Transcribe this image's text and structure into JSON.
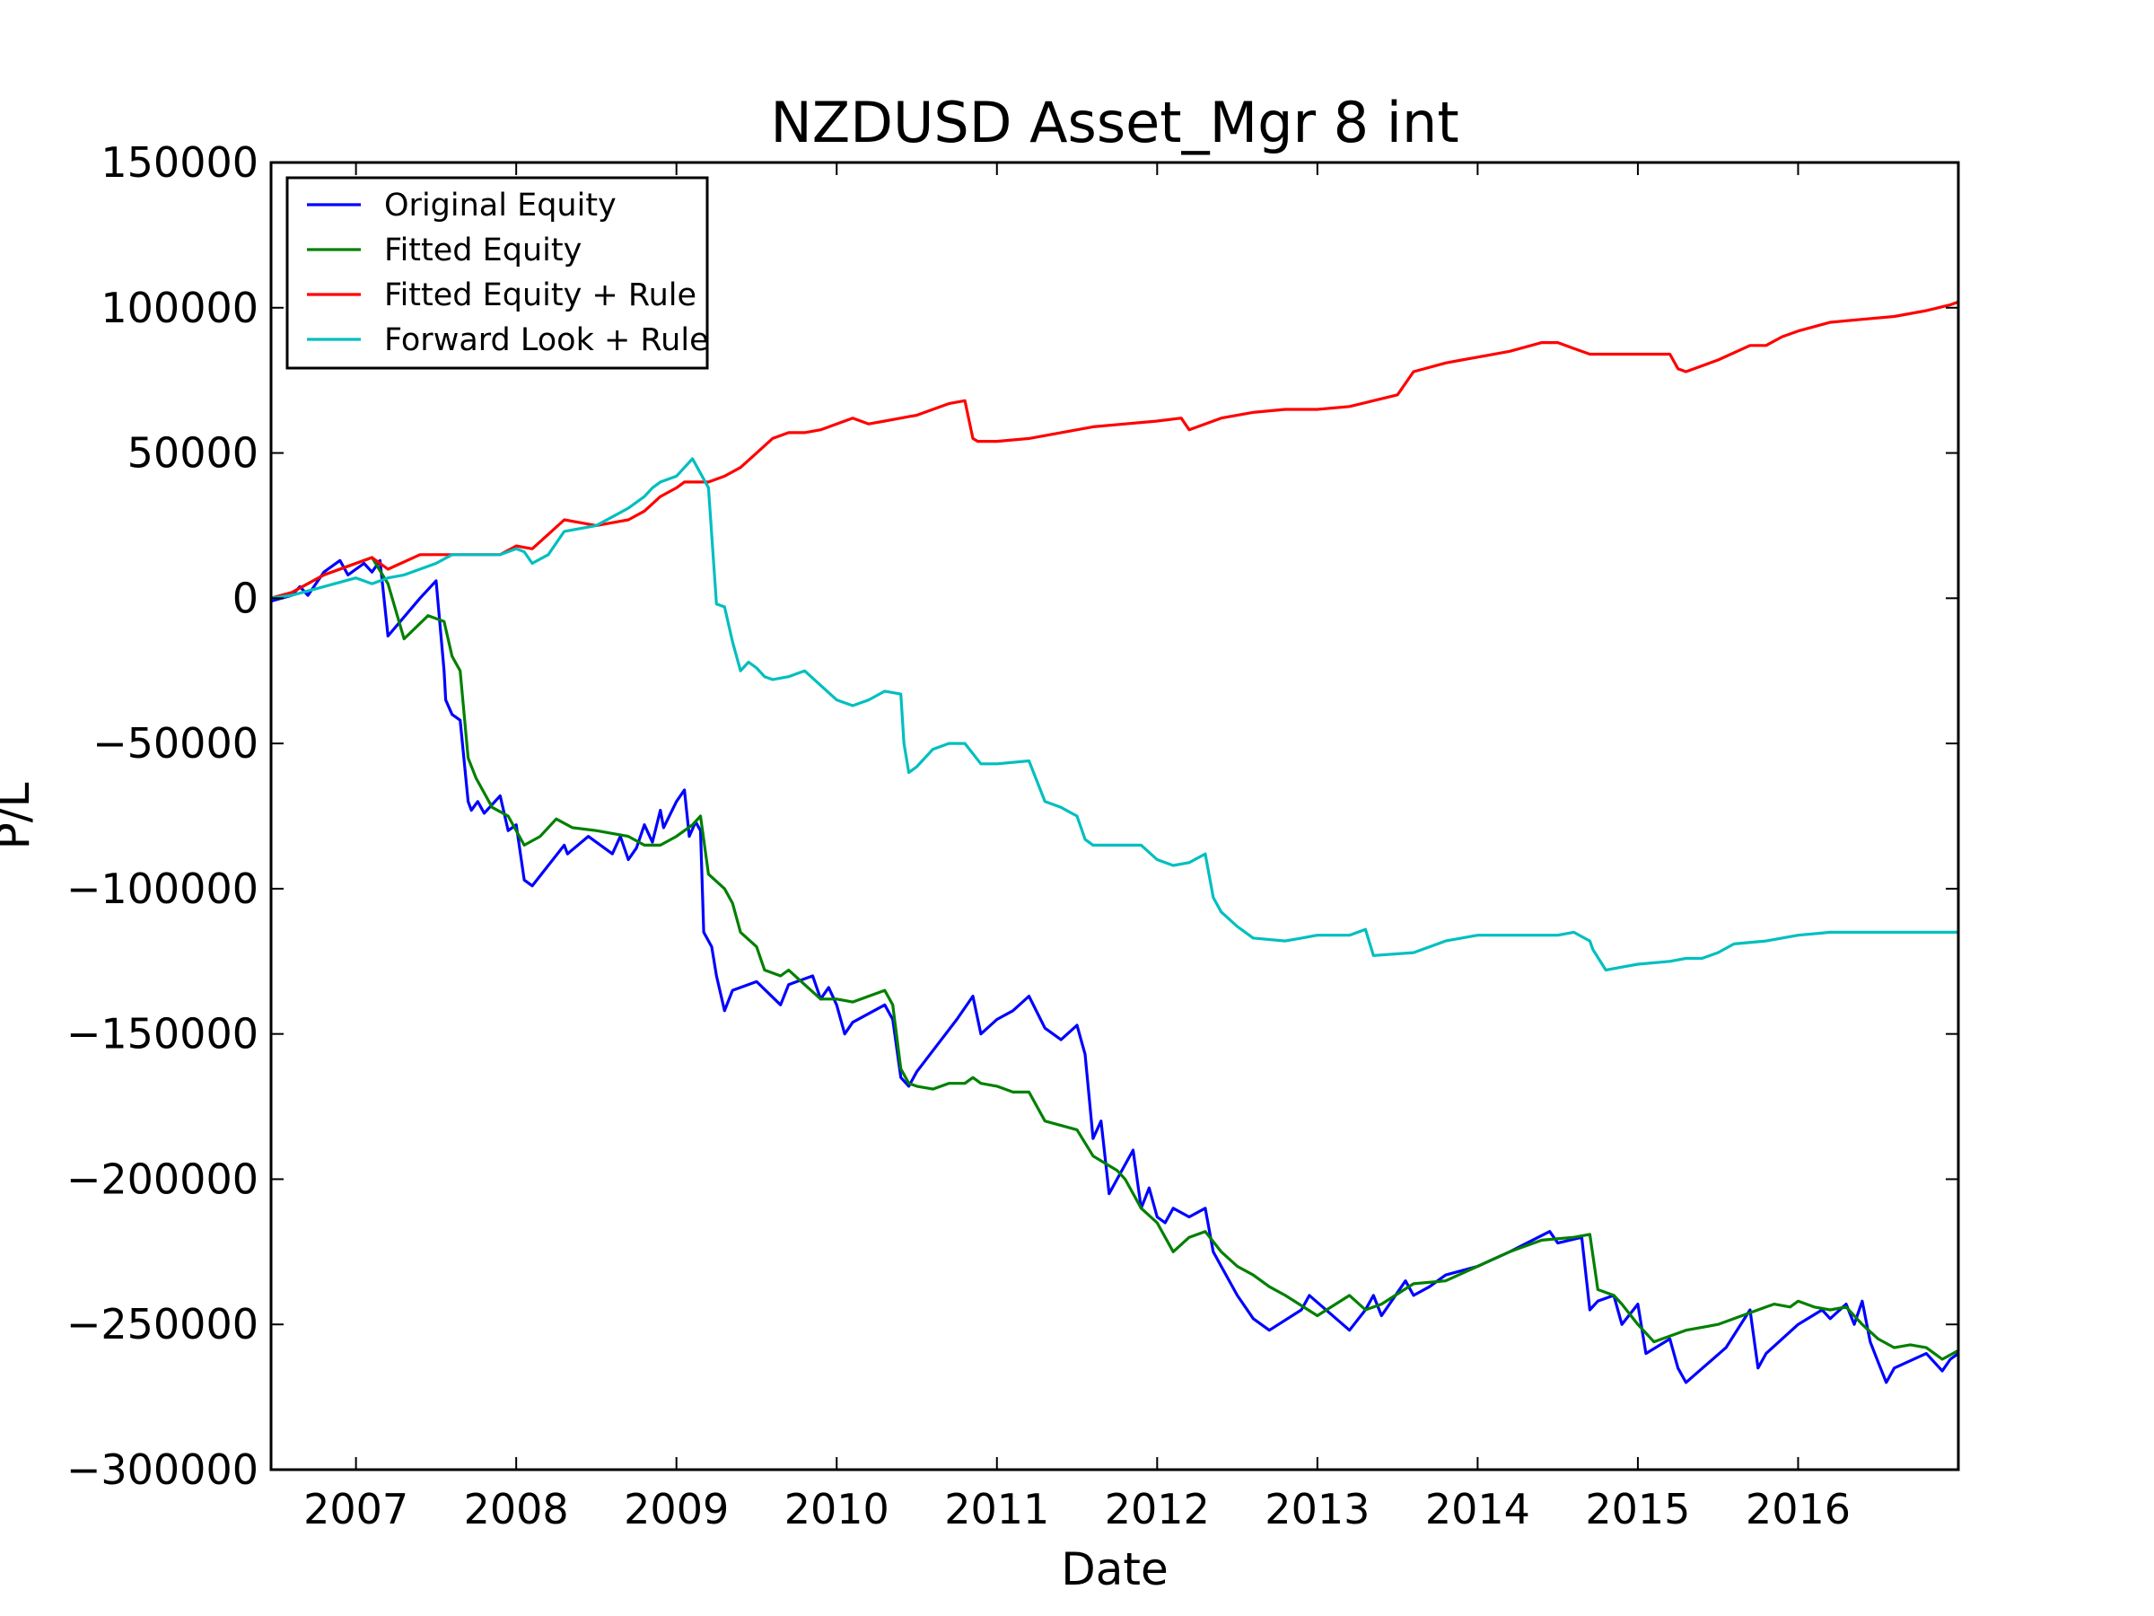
{
  "chart_data": {
    "type": "line",
    "title": "NZDUSD Asset_Mgr 8 int",
    "xlabel": "Date",
    "ylabel": "P/L",
    "xlim": [
      2006.47,
      2017.0
    ],
    "ylim": [
      -300000,
      150000
    ],
    "x_ticks": [
      2007,
      2008,
      2009,
      2010,
      2011,
      2012,
      2013,
      2014,
      2015,
      2016
    ],
    "x_tick_labels": [
      "2007",
      "2008",
      "2009",
      "2010",
      "2011",
      "2012",
      "2013",
      "2014",
      "2015",
      "2016"
    ],
    "y_ticks": [
      150000,
      100000,
      50000,
      0,
      -50000,
      -100000,
      -150000,
      -200000,
      -250000,
      -300000
    ],
    "y_tick_labels": [
      "150000",
      "100000",
      "50000",
      "0",
      "−50000",
      "−100000",
      "−150000",
      "−200000",
      "−250000",
      "−300000"
    ],
    "grid": false,
    "legend": "top-left",
    "series": [
      {
        "name": "Original Equity",
        "color": "#0000ff",
        "x": [
          2006.47,
          2006.6,
          2006.65,
          2006.7,
          2006.8,
          2006.9,
          2006.95,
          2007.0,
          2007.05,
          2007.1,
          2007.15,
          2007.2,
          2007.4,
          2007.5,
          2007.55,
          2007.56,
          2007.6,
          2007.65,
          2007.7,
          2007.72,
          2007.76,
          2007.8,
          2007.9,
          2007.95,
          2008.0,
          2008.05,
          2008.1,
          2008.2,
          2008.3,
          2008.32,
          2008.45,
          2008.6,
          2008.65,
          2008.7,
          2008.75,
          2008.8,
          2008.85,
          2008.9,
          2008.92,
          2009.0,
          2009.05,
          2009.08,
          2009.12,
          2009.15,
          2009.17,
          2009.22,
          2009.25,
          2009.3,
          2009.35,
          2009.5,
          2009.65,
          2009.7,
          2009.85,
          2009.9,
          2009.95,
          2010.0,
          2010.05,
          2010.1,
          2010.3,
          2010.35,
          2010.4,
          2010.45,
          2010.5,
          2010.75,
          2010.85,
          2010.9,
          2011.0,
          2011.1,
          2011.2,
          2011.3,
          2011.4,
          2011.5,
          2011.55,
          2011.6,
          2011.65,
          2011.7,
          2011.75,
          2011.85,
          2011.9,
          2011.95,
          2012.0,
          2012.05,
          2012.1,
          2012.2,
          2012.3,
          2012.35,
          2012.4,
          2012.5,
          2012.6,
          2012.7,
          2012.9,
          2012.95,
          2013.2,
          2013.3,
          2013.35,
          2013.4,
          2013.55,
          2013.6,
          2013.7,
          2013.8,
          2014.0,
          2014.2,
          2014.45,
          2014.5,
          2014.65,
          2014.7,
          2014.75,
          2014.85,
          2014.9,
          2015.0,
          2015.05,
          2015.2,
          2015.25,
          2015.3,
          2015.55,
          2015.7,
          2015.75,
          2015.8,
          2016.0,
          2016.15,
          2016.2,
          2016.3,
          2016.35,
          2016.4,
          2016.45,
          2016.5,
          2016.55,
          2016.6,
          2016.8,
          2016.9,
          2016.95,
          2017.0
        ],
        "y": [
          -1000,
          1000,
          4000,
          1000,
          9000,
          13000,
          8000,
          10000,
          12000,
          9000,
          13000,
          -13000,
          0,
          6000,
          -25000,
          -35000,
          -40000,
          -42000,
          -70000,
          -73000,
          -70000,
          -74000,
          -68000,
          -80000,
          -78000,
          -97000,
          -99000,
          -92000,
          -85000,
          -88000,
          -82000,
          -88000,
          -82000,
          -90000,
          -86000,
          -78000,
          -84000,
          -73000,
          -79000,
          -70000,
          -66000,
          -82000,
          -77000,
          -80000,
          -115000,
          -120000,
          -130000,
          -142000,
          -135000,
          -132000,
          -140000,
          -133000,
          -130000,
          -138000,
          -134000,
          -140000,
          -150000,
          -146000,
          -140000,
          -145000,
          -165000,
          -168000,
          -163000,
          -145000,
          -137000,
          -150000,
          -145000,
          -142000,
          -137000,
          -148000,
          -152000,
          -147000,
          -157000,
          -186000,
          -180000,
          -205000,
          -200000,
          -190000,
          -210000,
          -203000,
          -213000,
          -215000,
          -210000,
          -213000,
          -210000,
          -225000,
          -230000,
          -240000,
          -248000,
          -252000,
          -245000,
          -240000,
          -252000,
          -245000,
          -240000,
          -247000,
          -235000,
          -240000,
          -237000,
          -233000,
          -230000,
          -225000,
          -218000,
          -222000,
          -220000,
          -245000,
          -242000,
          -240000,
          -250000,
          -243000,
          -260000,
          -255000,
          -265000,
          -270000,
          -258000,
          -245000,
          -265000,
          -260000,
          -250000,
          -245000,
          -248000,
          -243000,
          -250000,
          -242000,
          -256000,
          -263000,
          -270000,
          -265000,
          -260000,
          -266000,
          -262000,
          -260000
        ]
      },
      {
        "name": "Fitted Equity",
        "color": "#008000",
        "x": [
          2006.47,
          2006.6,
          2006.8,
          2007.0,
          2007.1,
          2007.2,
          2007.3,
          2007.45,
          2007.55,
          2007.6,
          2007.65,
          2007.7,
          2007.75,
          2007.85,
          2007.95,
          2008.05,
          2008.15,
          2008.25,
          2008.35,
          2008.5,
          2008.7,
          2008.8,
          2008.9,
          2009.0,
          2009.1,
          2009.15,
          2009.2,
          2009.3,
          2009.35,
          2009.4,
          2009.5,
          2009.55,
          2009.65,
          2009.7,
          2009.8,
          2009.9,
          2010.0,
          2010.1,
          2010.2,
          2010.3,
          2010.35,
          2010.4,
          2010.45,
          2010.5,
          2010.6,
          2010.7,
          2010.8,
          2010.85,
          2010.9,
          2011.0,
          2011.1,
          2011.2,
          2011.3,
          2011.5,
          2011.6,
          2011.75,
          2011.8,
          2011.9,
          2012.0,
          2012.1,
          2012.2,
          2012.3,
          2012.4,
          2012.5,
          2012.6,
          2012.7,
          2012.8,
          2013.0,
          2013.2,
          2013.3,
          2013.4,
          2013.6,
          2013.8,
          2014.0,
          2014.2,
          2014.4,
          2014.6,
          2014.7,
          2014.75,
          2014.85,
          2014.9,
          2015.0,
          2015.1,
          2015.3,
          2015.5,
          2015.7,
          2015.8,
          2015.85,
          2015.95,
          2016.0,
          2016.1,
          2016.2,
          2016.3,
          2016.4,
          2016.5,
          2016.6,
          2016.7,
          2016.8,
          2016.9,
          2017.0
        ],
        "y": [
          0,
          2000,
          8000,
          12000,
          14000,
          5000,
          -14000,
          -6000,
          -8000,
          -20000,
          -25000,
          -55000,
          -62000,
          -72000,
          -75000,
          -85000,
          -82000,
          -76000,
          -79000,
          -80000,
          -82000,
          -85000,
          -85000,
          -82000,
          -78000,
          -75000,
          -95000,
          -100000,
          -105000,
          -115000,
          -120000,
          -128000,
          -130000,
          -128000,
          -133000,
          -138000,
          -138000,
          -139000,
          -137000,
          -135000,
          -140000,
          -162000,
          -167000,
          -168000,
          -169000,
          -167000,
          -167000,
          -165000,
          -167000,
          -168000,
          -170000,
          -170000,
          -180000,
          -183000,
          -192000,
          -197000,
          -200000,
          -210000,
          -215000,
          -225000,
          -220000,
          -218000,
          -225000,
          -230000,
          -233000,
          -237000,
          -240000,
          -247000,
          -240000,
          -245000,
          -243000,
          -236000,
          -235000,
          -230000,
          -225000,
          -221000,
          -220000,
          -219000,
          -238000,
          -240000,
          -243000,
          -250000,
          -256000,
          -252000,
          -250000,
          -246000,
          -244000,
          -243000,
          -244000,
          -242000,
          -244000,
          -245000,
          -244000,
          -250000,
          -255000,
          -258000,
          -257000,
          -258000,
          -262000,
          -259000
        ]
      },
      {
        "name": "Fitted Equity + Rule",
        "color": "#ff0000",
        "x": [
          2006.47,
          2006.6,
          2006.8,
          2007.0,
          2007.1,
          2007.2,
          2007.4,
          2007.5,
          2007.6,
          2007.8,
          2007.9,
          2008.0,
          2008.1,
          2008.2,
          2008.3,
          2008.4,
          2008.5,
          2008.6,
          2008.7,
          2008.8,
          2008.9,
          2009.0,
          2009.05,
          2009.1,
          2009.2,
          2009.3,
          2009.4,
          2009.5,
          2009.6,
          2009.7,
          2009.8,
          2009.9,
          2010.0,
          2010.1,
          2010.2,
          2010.3,
          2010.4,
          2010.5,
          2010.6,
          2010.7,
          2010.8,
          2010.85,
          2010.88,
          2011.0,
          2011.2,
          2011.4,
          2011.6,
          2011.8,
          2012.0,
          2012.15,
          2012.2,
          2012.4,
          2012.6,
          2012.8,
          2013.0,
          2013.2,
          2013.35,
          2013.5,
          2013.6,
          2013.8,
          2013.9,
          2014.0,
          2014.2,
          2014.4,
          2014.5,
          2014.6,
          2014.7,
          2014.8,
          2015.0,
          2015.2,
          2015.25,
          2015.3,
          2015.5,
          2015.7,
          2015.8,
          2015.9,
          2016.0,
          2016.2,
          2016.4,
          2016.6,
          2016.8,
          2016.95,
          2017.0
        ],
        "y": [
          0,
          2000,
          8000,
          12000,
          14000,
          10000,
          15000,
          15000,
          15000,
          15000,
          15000,
          18000,
          17000,
          22000,
          27000,
          26000,
          25000,
          26000,
          27000,
          30000,
          35000,
          38000,
          40000,
          40000,
          40000,
          42000,
          45000,
          50000,
          55000,
          57000,
          57000,
          58000,
          60000,
          62000,
          60000,
          61000,
          62000,
          63000,
          65000,
          67000,
          68000,
          55000,
          54000,
          54000,
          55000,
          57000,
          59000,
          60000,
          61000,
          62000,
          58000,
          62000,
          64000,
          65000,
          65000,
          66000,
          68000,
          70000,
          78000,
          81000,
          82000,
          83000,
          85000,
          88000,
          88000,
          86000,
          84000,
          84000,
          84000,
          84000,
          79000,
          78000,
          82000,
          87000,
          87000,
          90000,
          92000,
          95000,
          96000,
          97000,
          99000,
          101000,
          102000
        ]
      },
      {
        "name": "Forward Look + Rule",
        "color": "#00bfbf",
        "x": [
          2006.47,
          2006.6,
          2006.8,
          2007.0,
          2007.1,
          2007.2,
          2007.3,
          2007.5,
          2007.6,
          2007.8,
          2007.9,
          2008.0,
          2008.05,
          2008.1,
          2008.2,
          2008.3,
          2008.4,
          2008.5,
          2008.6,
          2008.7,
          2008.8,
          2008.85,
          2008.9,
          2009.0,
          2009.05,
          2009.1,
          2009.15,
          2009.2,
          2009.25,
          2009.3,
          2009.35,
          2009.4,
          2009.45,
          2009.5,
          2009.55,
          2009.6,
          2009.7,
          2009.8,
          2009.9,
          2010.0,
          2010.1,
          2010.2,
          2010.3,
          2010.4,
          2010.42,
          2010.45,
          2010.5,
          2010.6,
          2010.7,
          2010.8,
          2010.9,
          2011.0,
          2011.2,
          2011.3,
          2011.4,
          2011.5,
          2011.55,
          2011.6,
          2011.8,
          2011.9,
          2012.0,
          2012.1,
          2012.2,
          2012.3,
          2012.35,
          2012.4,
          2012.5,
          2012.6,
          2012.8,
          2012.9,
          2013.0,
          2013.2,
          2013.3,
          2013.35,
          2013.6,
          2013.8,
          2014.0,
          2014.3,
          2014.5,
          2014.6,
          2014.7,
          2014.72,
          2014.8,
          2014.9,
          2015.0,
          2015.2,
          2015.3,
          2015.4,
          2015.5,
          2015.6,
          2015.8,
          2016.0,
          2016.2,
          2016.5,
          2017.0
        ],
        "y": [
          0,
          1000,
          4000,
          7000,
          5000,
          7000,
          8000,
          12000,
          15000,
          15000,
          15000,
          17000,
          16000,
          12000,
          15000,
          23000,
          24000,
          25000,
          28000,
          31000,
          35000,
          38000,
          40000,
          42000,
          45000,
          48000,
          43000,
          38000,
          -2000,
          -3000,
          -15000,
          -25000,
          -22000,
          -24000,
          -27000,
          -28000,
          -27000,
          -25000,
          -30000,
          -35000,
          -37000,
          -35000,
          -32000,
          -33000,
          -50000,
          -60000,
          -58000,
          -52000,
          -50000,
          -50000,
          -57000,
          -57000,
          -56000,
          -70000,
          -72000,
          -75000,
          -83000,
          -85000,
          -85000,
          -85000,
          -90000,
          -92000,
          -91000,
          -88000,
          -103000,
          -108000,
          -113000,
          -117000,
          -118000,
          -117000,
          -116000,
          -116000,
          -114000,
          -123000,
          -122000,
          -118000,
          -116000,
          -116000,
          -116000,
          -115000,
          -118000,
          -121000,
          -128000,
          -127000,
          -126000,
          -125000,
          -124000,
          -124000,
          -122000,
          -119000,
          -118000,
          -116000,
          -115000,
          -115000,
          -115000
        ]
      }
    ]
  }
}
